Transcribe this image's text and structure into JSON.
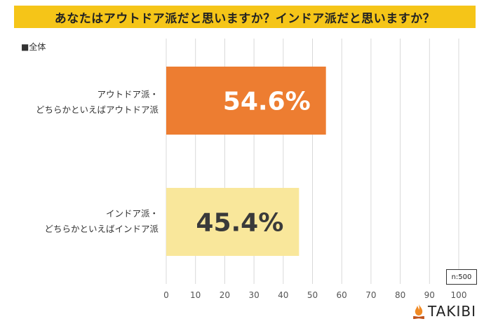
{
  "title": "あなたはアウトドア派だと思いますか？インドア派だと思いますか？",
  "subset_label": "■全体",
  "sample_note": "n:500",
  "logo_text": "TAKIBI",
  "chart_data": {
    "type": "bar",
    "orientation": "horizontal",
    "categories": [
      [
        "アウトドア派・",
        "どちらかといえばアウトドア派"
      ],
      [
        "インドア派・",
        "どちらかといえばインドア派"
      ]
    ],
    "values": [
      54.6,
      45.4
    ],
    "data_labels": [
      "54.6%",
      "45.4%"
    ],
    "colors": [
      "#ed7d31",
      "#f9e79b"
    ],
    "label_colors": [
      "#ffffff",
      "#3a3a3a"
    ],
    "xlim": [
      0,
      100
    ],
    "xticks": [
      0,
      10,
      20,
      30,
      40,
      50,
      60,
      70,
      80,
      90,
      100
    ],
    "grid": true
  }
}
